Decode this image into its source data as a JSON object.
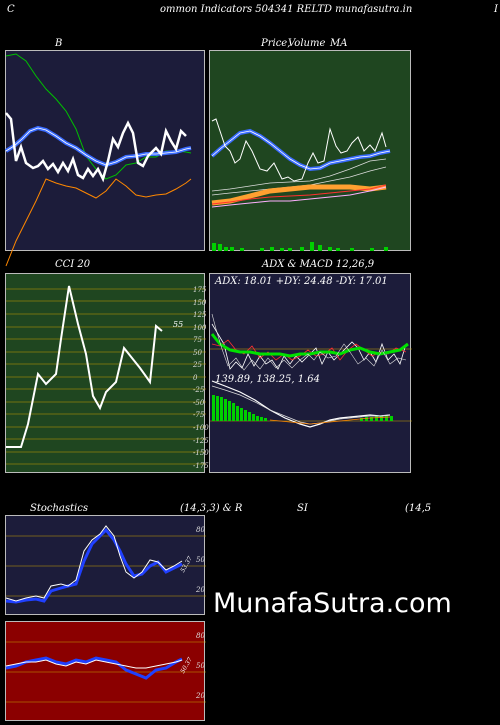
{
  "header": {
    "left_letter": "C",
    "title": "ommon  Indicators 504341 RELTD munafasutra.in",
    "right_letter": "I"
  },
  "bb_panel": {
    "title": "B"
  },
  "price_panel": {
    "title_price": "Price,",
    "title_overlap": "Volume",
    "title_ma": "MA"
  },
  "cci_panel": {
    "title": "CCI 20",
    "value_label": "55",
    "axis_ticks": [
      "175",
      "150",
      "125",
      "100",
      "75",
      "50",
      "25",
      "0",
      "-25",
      "-50",
      "-75",
      "-100",
      "-125",
      "-150",
      "-175"
    ]
  },
  "adx_panel": {
    "title": "ADX  & MACD 12,26,9",
    "adx_text": "ADX: 18.01  +DY: 24.48  -DY: 17.01",
    "macd_text": "139.89,  138.25,  1.64"
  },
  "stoch_header": {
    "left": "Stochastics",
    "mid": "(14,3,3) & R",
    "si": "SI",
    "right": "(14,5"
  },
  "stoch_panel": {
    "axis_ticks": [
      "80",
      "50",
      "20"
    ],
    "value_label": "53.37"
  },
  "rsi_panel": {
    "axis_ticks": [
      "80",
      "50",
      "20"
    ],
    "value_label": "50.37"
  },
  "watermark": "MunafaSutra.com",
  "colors": {
    "bb_bg": "#1c1c3a",
    "price_bg": "#1f4620",
    "cci_bg": "#1f4620",
    "adx_bg": "#1c1c3a",
    "stoch_bg": "#1c1c3a",
    "rsi_bg": "#8b0000"
  }
}
